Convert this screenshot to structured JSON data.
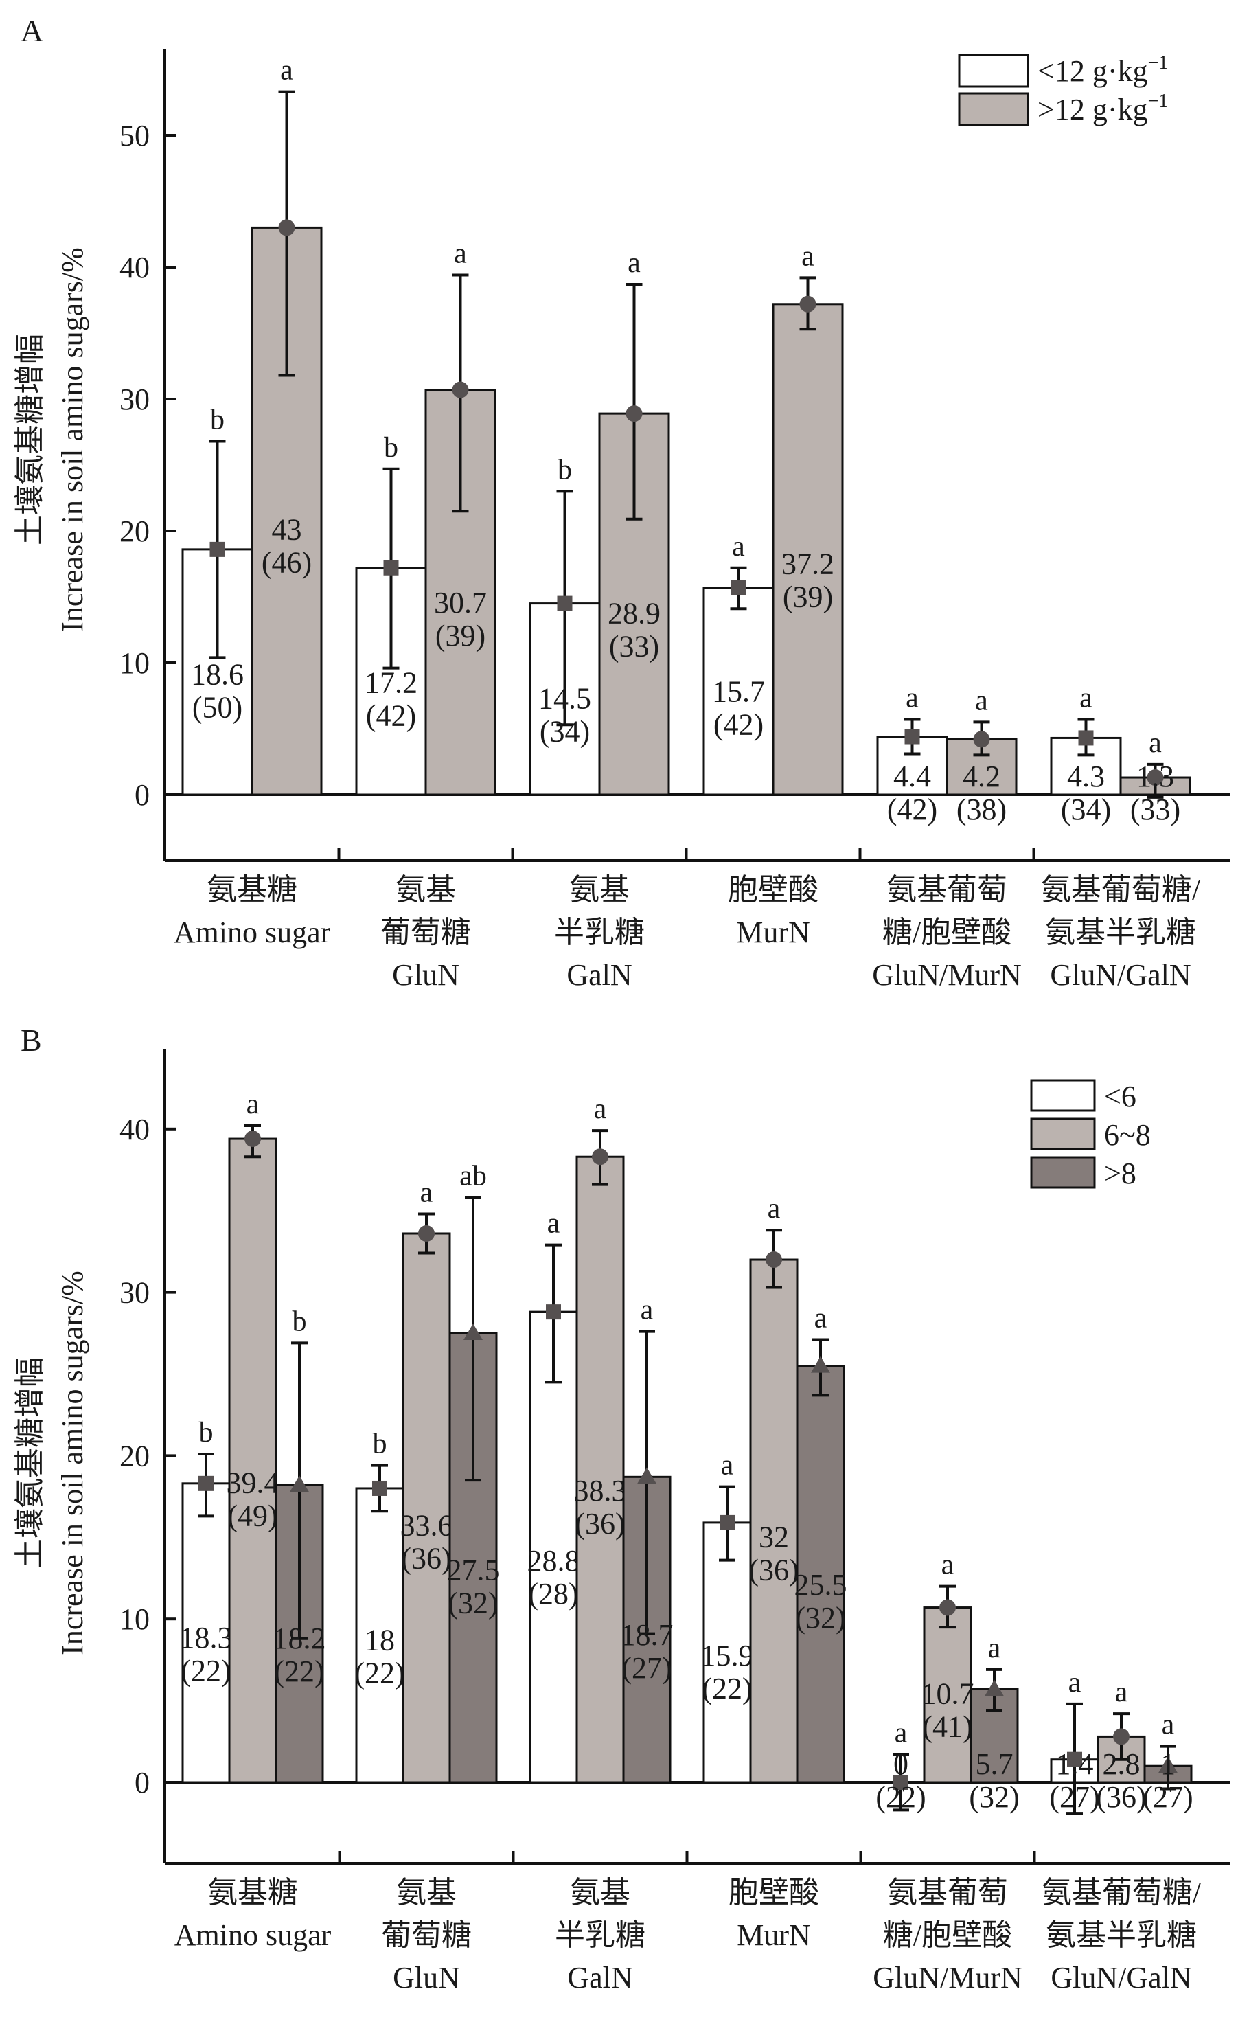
{
  "chart_data": [
    {
      "panel": "A",
      "type": "bar",
      "ylabel_cn": "土壤氨基糖增幅",
      "ylabel_en": "Increase in soil amino sugars/%",
      "ylim": [
        -5,
        57
      ],
      "yticks": [
        0,
        10,
        20,
        30,
        40,
        50
      ],
      "categories": [
        {
          "cn": [
            "氨基糖"
          ],
          "en": [
            "Amino sugar"
          ]
        },
        {
          "cn": [
            "氨基",
            "葡萄糖"
          ],
          "en": [
            "GluN"
          ]
        },
        {
          "cn": [
            "氨基",
            "半乳糖"
          ],
          "en": [
            "GalN"
          ]
        },
        {
          "cn": [
            "胞壁酸"
          ],
          "en": [
            "MurN"
          ]
        },
        {
          "cn": [
            "氨基葡萄",
            "糖/胞壁酸"
          ],
          "en": [
            "GluN/MurN"
          ]
        },
        {
          "cn": [
            "氨基葡萄糖/",
            "氨基半乳糖"
          ],
          "en": [
            "GluN/GalN"
          ]
        }
      ],
      "legend": {
        "position": "top-right"
      },
      "series": [
        {
          "name": "<12 g·kg",
          "name_sup": "−1",
          "color": "#ffffff",
          "marker": "square",
          "values": [
            18.6,
            17.2,
            14.5,
            15.7,
            4.4,
            4.3
          ],
          "n": [
            "(50)",
            "(42)",
            "(34)",
            "(42)",
            "(42)",
            "(34)"
          ],
          "err_high": [
            26.8,
            24.7,
            23.0,
            17.2,
            5.7,
            5.7
          ],
          "err_low": [
            10.4,
            9.6,
            5.3,
            14.1,
            3.1,
            3.0
          ],
          "sig": [
            "b",
            "b",
            "b",
            "a",
            "a",
            "a"
          ],
          "labels": [
            "18.6",
            "17.2",
            "14.5",
            "15.7",
            "4.4",
            "4.3"
          ]
        },
        {
          "name": ">12 g·kg",
          "name_sup": "−1",
          "color": "#bbb3af",
          "marker": "circle",
          "values": [
            43,
            30.7,
            28.9,
            37.2,
            4.2,
            1.3
          ],
          "n": [
            "(46)",
            "(39)",
            "(33)",
            "(39)",
            "(38)",
            "(33)"
          ],
          "err_high": [
            53.3,
            39.4,
            38.7,
            39.2,
            5.5,
            2.3
          ],
          "err_low": [
            31.8,
            21.5,
            20.9,
            35.3,
            3.0,
            -0.2
          ],
          "sig": [
            "a",
            "a",
            "a",
            "a",
            "a",
            "a"
          ],
          "labels": [
            "43",
            "30.7",
            "28.9",
            "37.2",
            "4.2",
            "1.3"
          ]
        }
      ]
    },
    {
      "panel": "B",
      "type": "bar",
      "ylabel_cn": "土壤氨基糖增幅",
      "ylabel_en": "Increase in soil amino sugars/%",
      "ylim": [
        -5,
        45
      ],
      "yticks": [
        0,
        10,
        20,
        30,
        40
      ],
      "categories": [
        {
          "cn": [
            "氨基糖"
          ],
          "en": [
            "Amino sugar"
          ]
        },
        {
          "cn": [
            "氨基",
            "葡萄糖"
          ],
          "en": [
            "GluN"
          ]
        },
        {
          "cn": [
            "氨基",
            "半乳糖"
          ],
          "en": [
            "GalN"
          ]
        },
        {
          "cn": [
            "胞壁酸"
          ],
          "en": [
            "MurN"
          ]
        },
        {
          "cn": [
            "氨基葡萄",
            "糖/胞壁酸"
          ],
          "en": [
            "GluN/MurN"
          ]
        },
        {
          "cn": [
            "氨基葡萄糖/",
            "氨基半乳糖"
          ],
          "en": [
            "GluN/GalN"
          ]
        }
      ],
      "legend": {
        "position": "top-right"
      },
      "series": [
        {
          "name": "<6",
          "name_sup": "",
          "color": "#ffffff",
          "marker": "square",
          "values": [
            18.3,
            18,
            28.8,
            15.9,
            0,
            1.4
          ],
          "n": [
            "(22)",
            "(22)",
            "(28)",
            "(22)",
            "(22)",
            "(27)"
          ],
          "err_high": [
            20.1,
            19.4,
            32.9,
            18.1,
            1.7,
            4.8
          ],
          "err_low": [
            16.3,
            16.6,
            24.5,
            13.6,
            -1.7,
            -1.9
          ],
          "sig": [
            "b",
            "b",
            "a",
            "a",
            "a",
            "a"
          ],
          "labels": [
            "18.3",
            "18",
            "28.8",
            "15.9",
            "0",
            "1.4"
          ]
        },
        {
          "name": "6~8",
          "name_sup": "",
          "color": "#bbb3af",
          "marker": "circle",
          "values": [
            39.4,
            33.6,
            38.3,
            32,
            10.7,
            2.8
          ],
          "n": [
            "(49)",
            "(36)",
            "(36)",
            "(36)",
            "(41)",
            "(36)"
          ],
          "err_high": [
            40.2,
            34.8,
            39.9,
            33.8,
            12.0,
            4.2
          ],
          "err_low": [
            38.3,
            32.4,
            36.6,
            30.3,
            9.5,
            1.4
          ],
          "sig": [
            "a",
            "a",
            "a",
            "a",
            "a",
            "a"
          ],
          "labels": [
            "39.4",
            "33.6",
            "38.3",
            "32",
            "10.7",
            "2.8"
          ]
        },
        {
          "name": ">8",
          "name_sup": "",
          "color": "#857c7a",
          "marker": "triangle",
          "values": [
            18.2,
            27.5,
            18.7,
            25.5,
            5.7,
            1
          ],
          "n": [
            "(22)",
            "(32)",
            "(27)",
            "(32)",
            "(32)",
            "(27)"
          ],
          "err_high": [
            26.9,
            35.8,
            27.6,
            27.1,
            6.9,
            2.2
          ],
          "err_low": [
            8.8,
            18.5,
            9.1,
            23.7,
            4.4,
            -0.4
          ],
          "sig": [
            "b",
            "ab",
            "a",
            "a",
            "a",
            "a"
          ],
          "labels": [
            "18.2",
            "27.5",
            "18.7",
            "25.5",
            "5.7",
            "1"
          ]
        }
      ]
    }
  ],
  "marker_color": "#555050"
}
